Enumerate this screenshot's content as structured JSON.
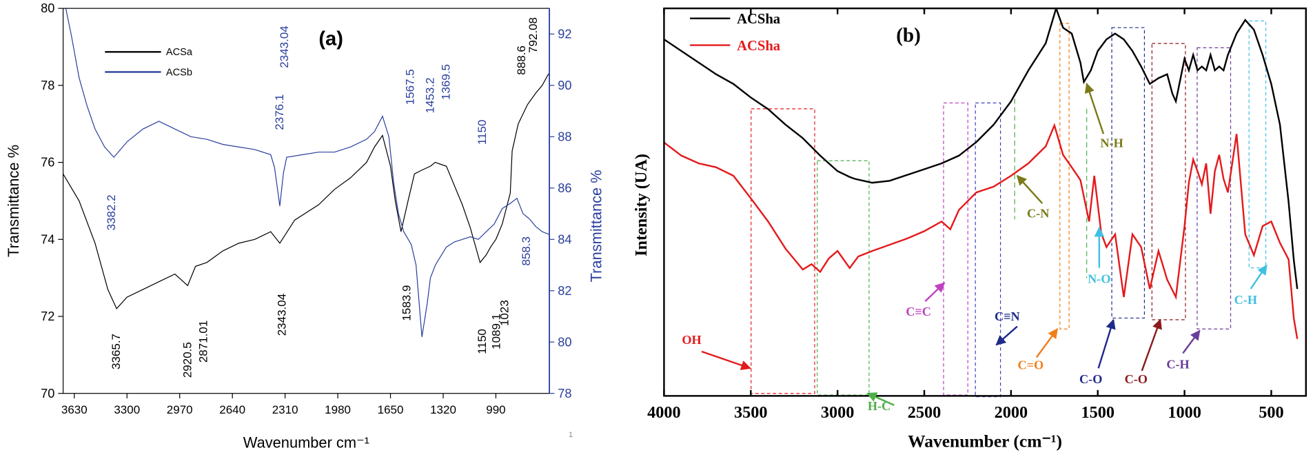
{
  "chart_data": [
    {
      "type": "line",
      "title": "(a)",
      "xlabel": "Wavenumber cm⁻¹",
      "ylabel": "Transmittance %",
      "y2label": "Transmittance %",
      "xlim": [
        3700,
        655
      ],
      "xticks": [
        3630,
        3300,
        2970,
        2640,
        2310,
        1980,
        1650,
        1320,
        990
      ],
      "ylim": [
        70,
        80
      ],
      "yticks": [
        70,
        72,
        74,
        76,
        78,
        80
      ],
      "y2lim": [
        78,
        93
      ],
      "y2ticks": [
        78,
        80,
        82,
        84,
        86,
        88,
        90,
        92
      ],
      "page_mark": "1",
      "series": [
        {
          "name": "ACSa",
          "color": "#000000",
          "x": [
            3700,
            3600,
            3500,
            3420,
            3365,
            3300,
            3200,
            3100,
            3000,
            2920,
            2871,
            2800,
            2700,
            2600,
            2500,
            2400,
            2343,
            2250,
            2100,
            2000,
            1900,
            1800,
            1750,
            1700,
            1650,
            1620,
            1584,
            1540,
            1500,
            1453,
            1400,
            1370,
            1300,
            1250,
            1200,
            1150,
            1089,
            1050,
            1023,
            990,
            950,
            900,
            888,
            850,
            792,
            740,
            700,
            660
          ],
          "values": [
            75.7,
            75.0,
            73.9,
            72.7,
            72.2,
            72.5,
            72.7,
            72.9,
            73.1,
            72.8,
            73.3,
            73.4,
            73.7,
            73.9,
            74.0,
            74.2,
            73.9,
            74.5,
            74.9,
            75.3,
            75.6,
            76.0,
            76.4,
            76.7,
            75.9,
            75.0,
            74.2,
            75.0,
            75.7,
            75.8,
            75.9,
            76.0,
            75.9,
            75.4,
            74.9,
            74.3,
            73.4,
            73.6,
            73.8,
            74.0,
            74.4,
            75.2,
            76.3,
            77.0,
            77.5,
            77.8,
            78.0,
            78.3
          ]
        },
        {
          "name": "ACSb",
          "color": "#2a3f9d",
          "axis": "y2",
          "x": [
            3700,
            3650,
            3600,
            3550,
            3500,
            3440,
            3382,
            3300,
            3200,
            3100,
            3000,
            2900,
            2800,
            2700,
            2600,
            2500,
            2400,
            2376,
            2343,
            2320,
            2300,
            2200,
            2100,
            2000,
            1900,
            1800,
            1750,
            1700,
            1660,
            1630,
            1600,
            1567,
            1520,
            1490,
            1453,
            1420,
            1400,
            1369,
            1330,
            1300,
            1250,
            1200,
            1150,
            1100,
            1050,
            1000,
            950,
            900,
            858,
            820,
            780,
            740,
            700,
            660
          ],
          "values": [
            93.5,
            92.0,
            90.3,
            89.2,
            88.3,
            87.6,
            87.2,
            87.8,
            88.3,
            88.6,
            88.3,
            88.0,
            87.9,
            87.7,
            87.6,
            87.5,
            87.3,
            86.8,
            85.3,
            86.6,
            87.2,
            87.3,
            87.4,
            87.4,
            87.6,
            87.9,
            88.2,
            88.8,
            88.0,
            86.2,
            85.0,
            84.3,
            83.8,
            83.0,
            80.2,
            81.5,
            82.5,
            83.0,
            83.4,
            83.7,
            83.9,
            84.0,
            84.1,
            84.0,
            84.3,
            84.6,
            85.2,
            85.4,
            85.6,
            85.0,
            84.8,
            84.5,
            84.3,
            84.2
          ]
        }
      ],
      "annotations": [
        {
          "text": "3365.7",
          "color": "#000000"
        },
        {
          "text": "2920.5",
          "color": "#000000"
        },
        {
          "text": "2871.01",
          "color": "#000000"
        },
        {
          "text": "2343.04",
          "color": "#000000"
        },
        {
          "text": "1583.9",
          "color": "#000000"
        },
        {
          "text": "1150",
          "color": "#000000"
        },
        {
          "text": "1089.1",
          "color": "#000000"
        },
        {
          "text": "1023",
          "color": "#000000"
        },
        {
          "text": "888.6",
          "color": "#000000"
        },
        {
          "text": "792.08",
          "color": "#000000"
        },
        {
          "text": "3382.2",
          "color": "#2a3f9d"
        },
        {
          "text": "2376.1",
          "color": "#2a3f9d"
        },
        {
          "text": "2343.04",
          "color": "#2a3f9d"
        },
        {
          "text": "1567.5",
          "color": "#2a3f9d"
        },
        {
          "text": "1453.2",
          "color": "#2a3f9d"
        },
        {
          "text": "1369.5",
          "color": "#2a3f9d"
        },
        {
          "text": "1150",
          "color": "#2a3f9d"
        },
        {
          "text": "858.3",
          "color": "#2a3f9d"
        }
      ]
    },
    {
      "type": "line",
      "title": "(b)",
      "xlabel": "Wavenumber (cm⁻¹)",
      "ylabel": "Intensity (UA)",
      "xlim": [
        4000,
        300
      ],
      "xticks": [
        4000,
        3500,
        3000,
        2500,
        2000,
        1500,
        1000,
        500
      ],
      "ylim": [
        0,
        100
      ],
      "series": [
        {
          "name": "ACSha",
          "color": "#000000",
          "x": [
            4000,
            3900,
            3800,
            3700,
            3600,
            3500,
            3400,
            3300,
            3200,
            3100,
            3000,
            2930,
            2900,
            2850,
            2800,
            2700,
            2600,
            2500,
            2400,
            2300,
            2200,
            2100,
            2000,
            1900,
            1800,
            1740,
            1700,
            1650,
            1600,
            1580,
            1540,
            1500,
            1450,
            1400,
            1350,
            1300,
            1250,
            1200,
            1150,
            1100,
            1070,
            1050,
            1000,
            975,
            950,
            925,
            900,
            875,
            850,
            825,
            800,
            775,
            750,
            700,
            650,
            600,
            550,
            500,
            450,
            400,
            370,
            350
          ],
          "values": [
            92,
            89,
            86,
            83,
            80.5,
            77,
            74,
            70,
            66.5,
            62,
            58,
            56.5,
            56,
            55.5,
            55,
            55.5,
            57,
            58.5,
            60,
            62,
            65.5,
            70,
            76,
            84,
            91,
            100,
            95,
            93.5,
            86,
            81,
            84,
            89,
            92,
            93.5,
            92,
            89,
            85,
            80.5,
            82,
            83,
            78,
            76,
            87,
            84,
            88,
            84,
            85,
            84,
            88,
            84,
            85,
            84,
            88,
            93.5,
            97,
            94.5,
            88,
            80.5,
            70,
            50,
            35,
            27.6
          ]
        },
        {
          "name": "ACSha",
          "color": "#e41a1c",
          "x": [
            4000,
            3900,
            3800,
            3700,
            3600,
            3500,
            3400,
            3300,
            3200,
            3150,
            3100,
            3050,
            3000,
            2930,
            2880,
            2800,
            2700,
            2600,
            2500,
            2400,
            2350,
            2300,
            2200,
            2100,
            2000,
            1900,
            1800,
            1750,
            1700,
            1650,
            1600,
            1550,
            1520,
            1480,
            1450,
            1400,
            1350,
            1300,
            1250,
            1200,
            1150,
            1100,
            1050,
            1000,
            975,
            950,
            925,
            900,
            875,
            850,
            825,
            800,
            775,
            750,
            725,
            700,
            650,
            600,
            550,
            500,
            450,
            400,
            370,
            350
          ],
          "values": [
            65.4,
            62,
            60,
            59,
            56.8,
            51,
            45,
            38,
            32.6,
            34,
            32,
            35.5,
            37.4,
            33,
            36,
            37.4,
            39,
            40.6,
            42.5,
            45,
            43,
            48,
            52.5,
            54,
            56.8,
            60,
            64.4,
            69.8,
            62.2,
            59,
            55.7,
            45,
            56.8,
            42,
            38.4,
            41.7,
            25.5,
            41.7,
            38.4,
            27.6,
            37.4,
            30,
            25.5,
            43.8,
            55,
            61,
            58,
            54.6,
            60,
            47,
            58,
            62.2,
            56,
            52.5,
            60,
            67.6,
            41.7,
            36.3,
            43.8,
            45,
            39.5,
            35.2,
            20,
            14.7
          ]
        }
      ],
      "annotations": [
        {
          "text": "OH",
          "color": "#e41a1c"
        },
        {
          "text": "H-C",
          "color": "#4daf4a"
        },
        {
          "text": "C≡C",
          "color": "#c040c0"
        },
        {
          "text": "C≡N",
          "color": "#1f2a8a"
        },
        {
          "text": "C=O",
          "color": "#f07f1a"
        },
        {
          "text": "N-O",
          "color": "#40c0e0"
        },
        {
          "text": "C-O",
          "color": "#1f2a8a"
        },
        {
          "text": "C-O",
          "color": "#8b1a1a"
        },
        {
          "text": "C-H",
          "color": "#6a3d9a"
        },
        {
          "text": "C-H",
          "color": "#40c0e0"
        },
        {
          "text": "N-H",
          "color": "#7a7a1a"
        },
        {
          "text": "C-N",
          "color": "#7a7a1a"
        }
      ]
    }
  ]
}
